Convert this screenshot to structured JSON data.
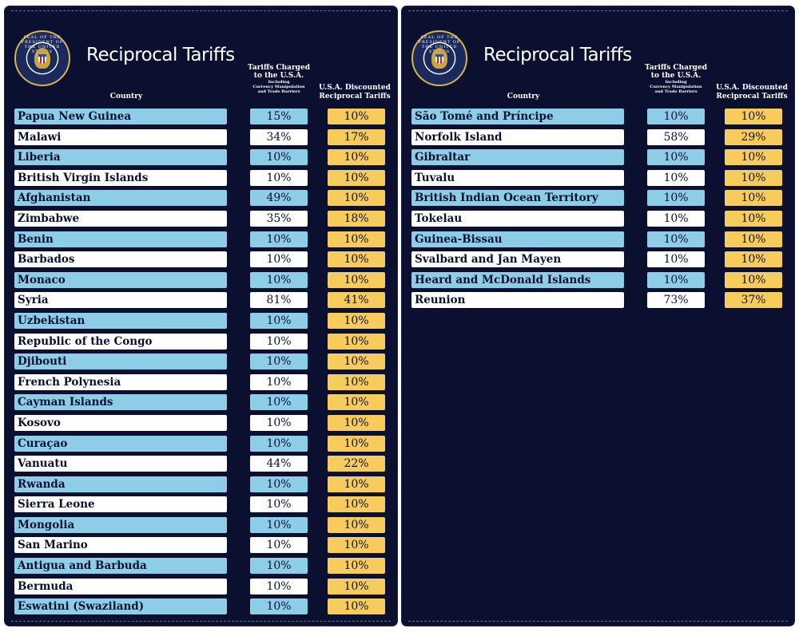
{
  "title": "Reciprocal Tariffs",
  "seal_text": "SEAL OF THE PRESIDENT OF THE UNITED STATES",
  "headers": {
    "country": "Country",
    "charged_line1": "Tariffs Charged",
    "charged_line2": "to the U.S.A.",
    "charged_sub1": "Including",
    "charged_sub2": "Currency Manipulation",
    "charged_sub3": "and Trade Barriers",
    "discount_line1": "U.S.A. Discounted",
    "discount_line2": "Reciprocal Tariffs"
  },
  "colors": {
    "background": "#0b1030",
    "row_blue": "#8dcde8",
    "row_white": "#ffffff",
    "discount_cell": "#f7cc5c"
  },
  "left_rows": [
    {
      "country": "Papua New Guinea",
      "charged": "15%",
      "discounted": "10%"
    },
    {
      "country": "Malawi",
      "charged": "34%",
      "discounted": "17%"
    },
    {
      "country": "Liberia",
      "charged": "10%",
      "discounted": "10%"
    },
    {
      "country": "British Virgin Islands",
      "charged": "10%",
      "discounted": "10%"
    },
    {
      "country": "Afghanistan",
      "charged": "49%",
      "discounted": "10%"
    },
    {
      "country": "Zimbabwe",
      "charged": "35%",
      "discounted": "18%"
    },
    {
      "country": "Benin",
      "charged": "10%",
      "discounted": "10%"
    },
    {
      "country": "Barbados",
      "charged": "10%",
      "discounted": "10%"
    },
    {
      "country": "Monaco",
      "charged": "10%",
      "discounted": "10%"
    },
    {
      "country": "Syria",
      "charged": "81%",
      "discounted": "41%"
    },
    {
      "country": "Uzbekistan",
      "charged": "10%",
      "discounted": "10%"
    },
    {
      "country": "Republic of the Congo",
      "charged": "10%",
      "discounted": "10%"
    },
    {
      "country": "Djibouti",
      "charged": "10%",
      "discounted": "10%"
    },
    {
      "country": "French Polynesia",
      "charged": "10%",
      "discounted": "10%"
    },
    {
      "country": "Cayman Islands",
      "charged": "10%",
      "discounted": "10%"
    },
    {
      "country": "Kosovo",
      "charged": "10%",
      "discounted": "10%"
    },
    {
      "country": "Curaçao",
      "charged": "10%",
      "discounted": "10%"
    },
    {
      "country": "Vanuatu",
      "charged": "44%",
      "discounted": "22%"
    },
    {
      "country": "Rwanda",
      "charged": "10%",
      "discounted": "10%"
    },
    {
      "country": "Sierra Leone",
      "charged": "10%",
      "discounted": "10%"
    },
    {
      "country": "Mongolia",
      "charged": "10%",
      "discounted": "10%"
    },
    {
      "country": "San Marino",
      "charged": "10%",
      "discounted": "10%"
    },
    {
      "country": "Antigua and Barbuda",
      "charged": "10%",
      "discounted": "10%"
    },
    {
      "country": "Bermuda",
      "charged": "10%",
      "discounted": "10%"
    },
    {
      "country": "Eswatini (Swaziland)",
      "charged": "10%",
      "discounted": "10%"
    }
  ],
  "right_rows": [
    {
      "country": "São Tomé and Príncipe",
      "charged": "10%",
      "discounted": "10%"
    },
    {
      "country": "Norfolk Island",
      "charged": "58%",
      "discounted": "29%"
    },
    {
      "country": "Gibraltar",
      "charged": "10%",
      "discounted": "10%"
    },
    {
      "country": "Tuvalu",
      "charged": "10%",
      "discounted": "10%"
    },
    {
      "country": "British Indian Ocean Territory",
      "charged": "10%",
      "discounted": "10%"
    },
    {
      "country": "Tokelau",
      "charged": "10%",
      "discounted": "10%"
    },
    {
      "country": "Guinea-Bissau",
      "charged": "10%",
      "discounted": "10%"
    },
    {
      "country": "Svalbard and Jan Mayen",
      "charged": "10%",
      "discounted": "10%"
    },
    {
      "country": "Heard and McDonald Islands",
      "charged": "10%",
      "discounted": "10%"
    },
    {
      "country": "Reunion",
      "charged": "73%",
      "discounted": "37%"
    }
  ]
}
